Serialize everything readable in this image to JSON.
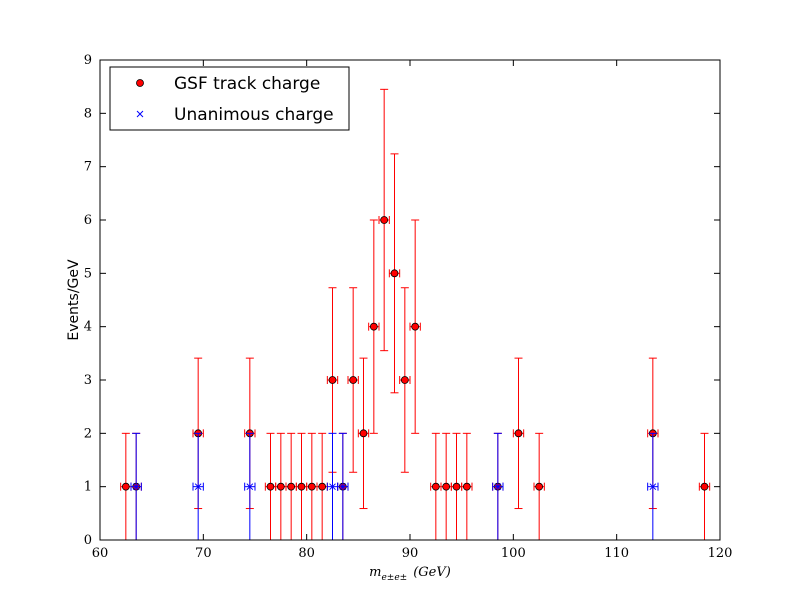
{
  "chart_data": {
    "type": "scatter",
    "title": "",
    "xlabel": "m_{e±e±} (GeV)",
    "xlabel_main": "m",
    "xlabel_sub": "e±e±",
    "xlabel_unit": "(GeV)",
    "ylabel": "Events/GeV",
    "xlim": [
      60,
      120
    ],
    "ylim": [
      0,
      9
    ],
    "x_ticks": [
      "60",
      "70",
      "80",
      "90",
      "100",
      "110",
      "120"
    ],
    "y_ticks": [
      "0",
      "1",
      "2",
      "3",
      "4",
      "5",
      "6",
      "7",
      "8",
      "9"
    ],
    "grid": false,
    "legend_position": "top-left",
    "series": [
      {
        "name": "GSF track charge",
        "color": "#ff0000",
        "marker": "circle",
        "x": [
          62.5,
          63.5,
          69.5,
          74.5,
          76.5,
          77.5,
          78.5,
          79.5,
          80.5,
          81.5,
          82.5,
          83.5,
          84.5,
          85.5,
          86.5,
          87.5,
          88.5,
          89.5,
          90.5,
          92.5,
          93.5,
          94.5,
          95.5,
          98.5,
          100.5,
          102.5,
          113.5,
          118.5
        ],
        "y": [
          1,
          1,
          2,
          2,
          1,
          1,
          1,
          1,
          1,
          1,
          3,
          1,
          3,
          2,
          4,
          6,
          5,
          3,
          4,
          1,
          1,
          1,
          1,
          1,
          2,
          1,
          2,
          1
        ],
        "y_err": [
          1,
          1,
          1.41,
          1.41,
          1,
          1,
          1,
          1,
          1,
          1,
          1.73,
          1,
          1.73,
          1.41,
          2,
          2.45,
          2.24,
          1.73,
          2,
          1,
          1,
          1,
          1,
          1,
          1.41,
          1,
          1.41,
          1
        ],
        "x_err": 0.5
      },
      {
        "name": "Unanimous charge",
        "color": "#0000ff",
        "marker": "x",
        "x": [
          63.5,
          69.5,
          74.5,
          82.5,
          83.5,
          98.5,
          113.5
        ],
        "y": [
          1,
          1,
          1,
          1,
          1,
          1,
          1
        ],
        "y_err": [
          1,
          1,
          1,
          1,
          1,
          1,
          1
        ],
        "x_err": 0.5
      }
    ]
  }
}
